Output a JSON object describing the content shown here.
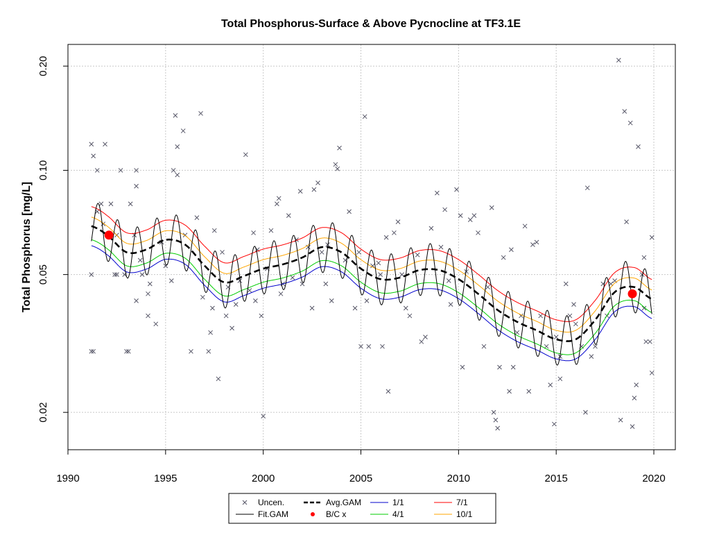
{
  "chart_data": {
    "type": "line",
    "title": "Total Phosphorus-Surface & Above Pycnocline at TF3.1E",
    "xlabel": "",
    "ylabel": "Total Phosphorus [mg/L]",
    "y_scale": "log",
    "xlim": [
      1990,
      2021.1
    ],
    "ylim": [
      0.0156,
      0.231
    ],
    "x_ticks": [
      1990,
      1995,
      2000,
      2005,
      2010,
      2015,
      2020
    ],
    "x_tick_labels": [
      "1990",
      "1995",
      "2000",
      "2005",
      "2010",
      "2015",
      "2020"
    ],
    "y_ticks": [
      0.02,
      0.05,
      0.1,
      0.2
    ],
    "y_tick_labels": [
      "0.02",
      "0.05",
      "0.10",
      "0.20"
    ],
    "grid": true,
    "legend_position": "bottom",
    "legend": [
      {
        "label": "Uncen.",
        "kind": "cross",
        "color": "#555566"
      },
      {
        "label": "Fit.GAM",
        "kind": "line",
        "color": "#000000"
      },
      {
        "label": "Avg.GAM",
        "kind": "dashed",
        "color": "#000000"
      },
      {
        "label": "B/C x",
        "kind": "dot",
        "color": "#ff0000"
      },
      {
        "label": "1/1",
        "kind": "line",
        "color": "#0000cc"
      },
      {
        "label": "4/1",
        "kind": "line",
        "color": "#00cc00"
      },
      {
        "label": "7/1",
        "kind": "line",
        "color": "#ff0000"
      },
      {
        "label": "10/1",
        "kind": "line",
        "color": "#ffa500"
      }
    ],
    "avg_gam": {
      "x": [
        1991.2,
        1992,
        1993,
        1994,
        1995,
        1996,
        1997,
        1998,
        1999,
        2000,
        2001,
        2002,
        2003,
        2004,
        2005,
        2006,
        2007,
        2008,
        2009,
        2010,
        2011,
        2012,
        2013,
        2014,
        2015,
        2016,
        2017,
        2018,
        2019,
        2019.9
      ],
      "y": [
        0.069,
        0.065,
        0.058,
        0.059,
        0.063,
        0.061,
        0.053,
        0.0475,
        0.0495,
        0.052,
        0.0535,
        0.056,
        0.06,
        0.058,
        0.052,
        0.0485,
        0.049,
        0.0515,
        0.0515,
        0.0485,
        0.044,
        0.0395,
        0.0365,
        0.0345,
        0.0325,
        0.0325,
        0.037,
        0.0445,
        0.046,
        0.0425
      ]
    },
    "seasonal_offsets": {
      "m1_1": -0.13,
      "m4_1": -0.09,
      "m7_1": 0.13,
      "m10_1": 0.06
    },
    "seasonal_amplitude": 0.17,
    "bc_points": [
      {
        "x": 1992.1,
        "y": 0.065
      },
      {
        "x": 2018.9,
        "y": 0.044
      }
    ],
    "observations": [
      [
        1991.2,
        0.119
      ],
      [
        1991.3,
        0.11
      ],
      [
        1991.5,
        0.1
      ],
      [
        1991.9,
        0.119
      ],
      [
        1991.7,
        0.08
      ],
      [
        1991.2,
        0.03
      ],
      [
        1991.3,
        0.03
      ],
      [
        1991.2,
        0.05
      ],
      [
        1991.5,
        0.076
      ],
      [
        1991.8,
        0.07
      ],
      [
        1992.2,
        0.08
      ],
      [
        1992.4,
        0.05
      ],
      [
        1992.5,
        0.05
      ],
      [
        1992.5,
        0.065
      ],
      [
        1992.7,
        0.1
      ],
      [
        1992.9,
        0.05
      ],
      [
        1993.0,
        0.03
      ],
      [
        1993.1,
        0.03
      ],
      [
        1993.2,
        0.08
      ],
      [
        1993.4,
        0.065
      ],
      [
        1993.5,
        0.1
      ],
      [
        1993.5,
        0.09
      ],
      [
        1993.5,
        0.042
      ],
      [
        1993.7,
        0.055
      ],
      [
        1993.8,
        0.05
      ],
      [
        1994.1,
        0.044
      ],
      [
        1994.1,
        0.038
      ],
      [
        1994.2,
        0.047
      ],
      [
        1994.5,
        0.036
      ],
      [
        1994.8,
        0.062
      ],
      [
        1995.0,
        0.053
      ],
      [
        1995.3,
        0.048
      ],
      [
        1995.4,
        0.1
      ],
      [
        1995.5,
        0.144
      ],
      [
        1995.6,
        0.117
      ],
      [
        1995.6,
        0.097
      ],
      [
        1995.9,
        0.13
      ],
      [
        1996.0,
        0.065
      ],
      [
        1996.3,
        0.03
      ],
      [
        1996.6,
        0.073
      ],
      [
        1996.8,
        0.146
      ],
      [
        1996.9,
        0.043
      ],
      [
        1997.2,
        0.03
      ],
      [
        1997.3,
        0.034
      ],
      [
        1997.4,
        0.04
      ],
      [
        1997.5,
        0.067
      ],
      [
        1997.7,
        0.025
      ],
      [
        1997.9,
        0.058
      ],
      [
        1998.1,
        0.038
      ],
      [
        1998.2,
        0.046
      ],
      [
        1998.4,
        0.035
      ],
      [
        1998.6,
        0.041
      ],
      [
        1998.8,
        0.048
      ],
      [
        1999.1,
        0.111
      ],
      [
        1999.3,
        0.045
      ],
      [
        1999.5,
        0.066
      ],
      [
        1999.6,
        0.042
      ],
      [
        1999.7,
        0.059
      ],
      [
        1999.9,
        0.038
      ],
      [
        2000.0,
        0.0195
      ],
      [
        2000.2,
        0.052
      ],
      [
        2000.4,
        0.067
      ],
      [
        2000.7,
        0.08
      ],
      [
        2000.8,
        0.083
      ],
      [
        2000.9,
        0.044
      ],
      [
        2001.0,
        0.047
      ],
      [
        2001.3,
        0.074
      ],
      [
        2001.5,
        0.049
      ],
      [
        2001.7,
        0.063
      ],
      [
        2001.9,
        0.087
      ],
      [
        2002.3,
        0.06
      ],
      [
        2002.5,
        0.04
      ],
      [
        2002.6,
        0.088
      ],
      [
        2002.8,
        0.092
      ],
      [
        2003.0,
        0.058
      ],
      [
        2003.3,
        0.061
      ],
      [
        2003.5,
        0.042
      ],
      [
        2003.7,
        0.104
      ],
      [
        2003.8,
        0.101
      ],
      [
        2003.9,
        0.116
      ],
      [
        2004.2,
        0.055
      ],
      [
        2004.4,
        0.076
      ],
      [
        2004.7,
        0.04
      ],
      [
        2004.9,
        0.058
      ],
      [
        2005.0,
        0.031
      ],
      [
        2005.2,
        0.143
      ],
      [
        2005.3,
        0.042
      ],
      [
        2005.4,
        0.031
      ],
      [
        2005.6,
        0.053
      ],
      [
        2005.9,
        0.054
      ],
      [
        2006.0,
        0.05
      ],
      [
        2006.1,
        0.031
      ],
      [
        2006.3,
        0.064
      ],
      [
        2006.4,
        0.023
      ],
      [
        2006.7,
        0.066
      ],
      [
        2006.9,
        0.071
      ],
      [
        2007.1,
        0.05
      ],
      [
        2007.3,
        0.04
      ],
      [
        2007.5,
        0.038
      ],
      [
        2007.9,
        0.057
      ],
      [
        2008.1,
        0.032
      ],
      [
        2008.3,
        0.033
      ],
      [
        2008.6,
        0.068
      ],
      [
        2008.9,
        0.086
      ],
      [
        2009.1,
        0.06
      ],
      [
        2009.3,
        0.077
      ],
      [
        2009.6,
        0.041
      ],
      [
        2009.9,
        0.088
      ],
      [
        2010.1,
        0.074
      ],
      [
        2010.2,
        0.027
      ],
      [
        2010.4,
        0.051
      ],
      [
        2010.6,
        0.072
      ],
      [
        2010.8,
        0.074
      ],
      [
        2011.0,
        0.066
      ],
      [
        2011.3,
        0.031
      ],
      [
        2011.5,
        0.046
      ],
      [
        2011.7,
        0.078
      ],
      [
        2011.8,
        0.02
      ],
      [
        2011.9,
        0.019
      ],
      [
        2012.0,
        0.018
      ],
      [
        2012.1,
        0.027
      ],
      [
        2012.3,
        0.056
      ],
      [
        2012.6,
        0.023
      ],
      [
        2012.7,
        0.059
      ],
      [
        2012.8,
        0.027
      ],
      [
        2013.0,
        0.034
      ],
      [
        2013.2,
        0.038
      ],
      [
        2013.4,
        0.069
      ],
      [
        2013.6,
        0.023
      ],
      [
        2013.8,
        0.061
      ],
      [
        2014.0,
        0.062
      ],
      [
        2014.2,
        0.038
      ],
      [
        2014.5,
        0.031
      ],
      [
        2014.7,
        0.024
      ],
      [
        2014.9,
        0.0185
      ],
      [
        2015.2,
        0.025
      ],
      [
        2015.5,
        0.047
      ],
      [
        2015.7,
        0.038
      ],
      [
        2015.9,
        0.041
      ],
      [
        2016.0,
        0.036
      ],
      [
        2016.3,
        0.031
      ],
      [
        2016.5,
        0.02
      ],
      [
        2016.6,
        0.089
      ],
      [
        2016.8,
        0.029
      ],
      [
        2017.0,
        0.031
      ],
      [
        2017.4,
        0.047
      ],
      [
        2017.6,
        0.038
      ],
      [
        2017.8,
        0.047
      ],
      [
        2018.0,
        0.048
      ],
      [
        2018.2,
        0.208
      ],
      [
        2018.3,
        0.019
      ],
      [
        2018.5,
        0.148
      ],
      [
        2018.6,
        0.071
      ],
      [
        2018.8,
        0.137
      ],
      [
        2018.9,
        0.0182
      ],
      [
        2019.0,
        0.022
      ],
      [
        2019.1,
        0.024
      ],
      [
        2019.2,
        0.117
      ],
      [
        2019.4,
        0.05
      ],
      [
        2019.5,
        0.056
      ],
      [
        2019.6,
        0.032
      ],
      [
        2019.8,
        0.032
      ],
      [
        2019.9,
        0.064
      ],
      [
        2019.9,
        0.026
      ],
      [
        2019.5,
        0.04
      ],
      [
        2015.2,
        0.029
      ],
      [
        2015.0,
        0.033
      ],
      [
        2009.5,
        0.048
      ],
      [
        2003.2,
        0.047
      ],
      [
        2002.0,
        0.047
      ]
    ]
  }
}
